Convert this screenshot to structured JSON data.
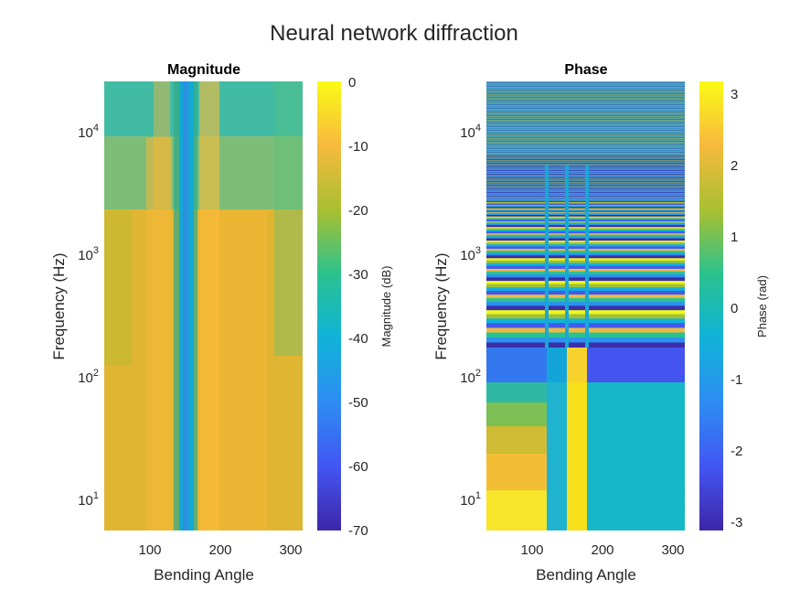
{
  "figure": {
    "title": "Neural network diffraction"
  },
  "chart_data": [
    {
      "type": "heatmap",
      "title": "Magnitude",
      "xlabel": "Bending Angle",
      "ylabel": "Frequency (Hz)",
      "x_ticks": [
        100,
        200,
        300
      ],
      "x_range": [
        33,
        315
      ],
      "y_scale": "log",
      "y_range": [
        5.5,
        22050
      ],
      "y_ticks": [
        {
          "value": 10,
          "base": "10",
          "exp": "1"
        },
        {
          "value": 100,
          "base": "10",
          "exp": "2"
        },
        {
          "value": 1000,
          "base": "10",
          "exp": "3"
        },
        {
          "value": 10000,
          "base": "10",
          "exp": "4"
        }
      ],
      "colorbar": {
        "label": "Magnitude (dB)",
        "range": [
          -70,
          0
        ],
        "ticks": [
          "0",
          "-10",
          "-20",
          "-30",
          "-40",
          "-50",
          "-60",
          "-70"
        ],
        "colormap": "parula"
      }
    },
    {
      "type": "heatmap",
      "title": "Phase",
      "xlabel": "Bending Angle",
      "ylabel": "Frequency (Hz)",
      "x_ticks": [
        100,
        200,
        300
      ],
      "x_range": [
        33,
        315
      ],
      "y_scale": "log",
      "y_range": [
        5.5,
        22050
      ],
      "y_ticks": [
        {
          "value": 10,
          "base": "10",
          "exp": "1"
        },
        {
          "value": 100,
          "base": "10",
          "exp": "2"
        },
        {
          "value": 1000,
          "base": "10",
          "exp": "3"
        },
        {
          "value": 10000,
          "base": "10",
          "exp": "4"
        }
      ],
      "colorbar": {
        "label": "Phase (rad)",
        "range": [
          -3.1416,
          3.1416
        ],
        "ticks": [
          "3",
          "2",
          "1",
          "0",
          "-1",
          "-2",
          "-3"
        ],
        "colormap": "parula"
      }
    }
  ]
}
